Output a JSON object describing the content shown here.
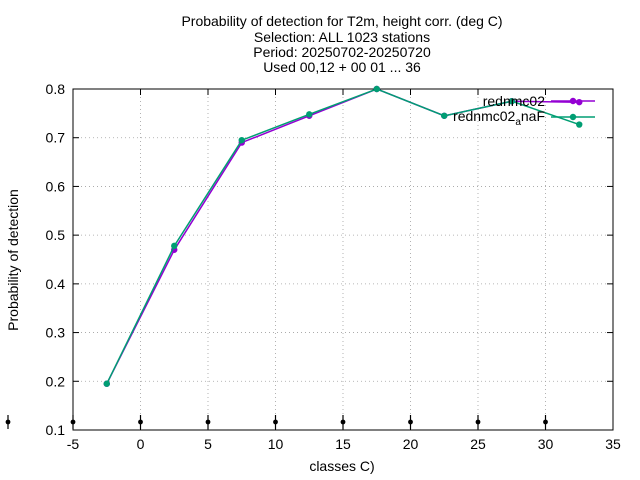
{
  "chart_data": {
    "type": "line",
    "title_lines": [
      "Probability of detection  for T2m, height corr. (deg C)",
      "Selection: ALL    1023 stations",
      "Period: 20250702-20250720",
      "Used 00,12 + 00 01 ... 36"
    ],
    "xlabel": "classes C)",
    "ylabel": "Probability of detection",
    "xlim": [
      -5,
      35
    ],
    "ylim": [
      0.1,
      0.8
    ],
    "xticks": [
      -5,
      0,
      5,
      10,
      15,
      20,
      25,
      30,
      35
    ],
    "xtick_labels": [
      "-5",
      "0",
      "5",
      "10",
      "15",
      "20",
      "25",
      "30",
      "35"
    ],
    "yticks": [
      0.1,
      0.2,
      0.3,
      0.4,
      0.5,
      0.6,
      0.7,
      0.8
    ],
    "ytick_labels": [
      "0.1",
      "0.2",
      "0.3",
      "0.4",
      "0.5",
      "0.6",
      "0.7",
      "0.8"
    ],
    "grid": true,
    "legend_position": "top-right",
    "series": [
      {
        "name": "rednmc02",
        "color": "#9400d3",
        "x": [
          -2.5,
          2.5,
          7.5,
          12.5,
          17.5,
          22.5,
          27.5,
          32.5
        ],
        "y": [
          0.195,
          0.47,
          0.69,
          0.745,
          0.8,
          0.745,
          0.775,
          0.773
        ]
      },
      {
        "name": "rednmc02_aname",
        "legend_main": "rednmc02",
        "legend_sub": "a",
        "legend_tail": "naF",
        "color": "#009e73",
        "x": [
          -2.5,
          2.5,
          7.5,
          12.5,
          17.5,
          22.5,
          27.5,
          32.5
        ],
        "y": [
          0.195,
          0.478,
          0.695,
          0.748,
          0.8,
          0.745,
          0.775,
          0.727
        ]
      }
    ],
    "bottom_markers_x": [
      -5,
      0,
      5,
      10,
      15,
      20,
      25,
      30
    ]
  }
}
